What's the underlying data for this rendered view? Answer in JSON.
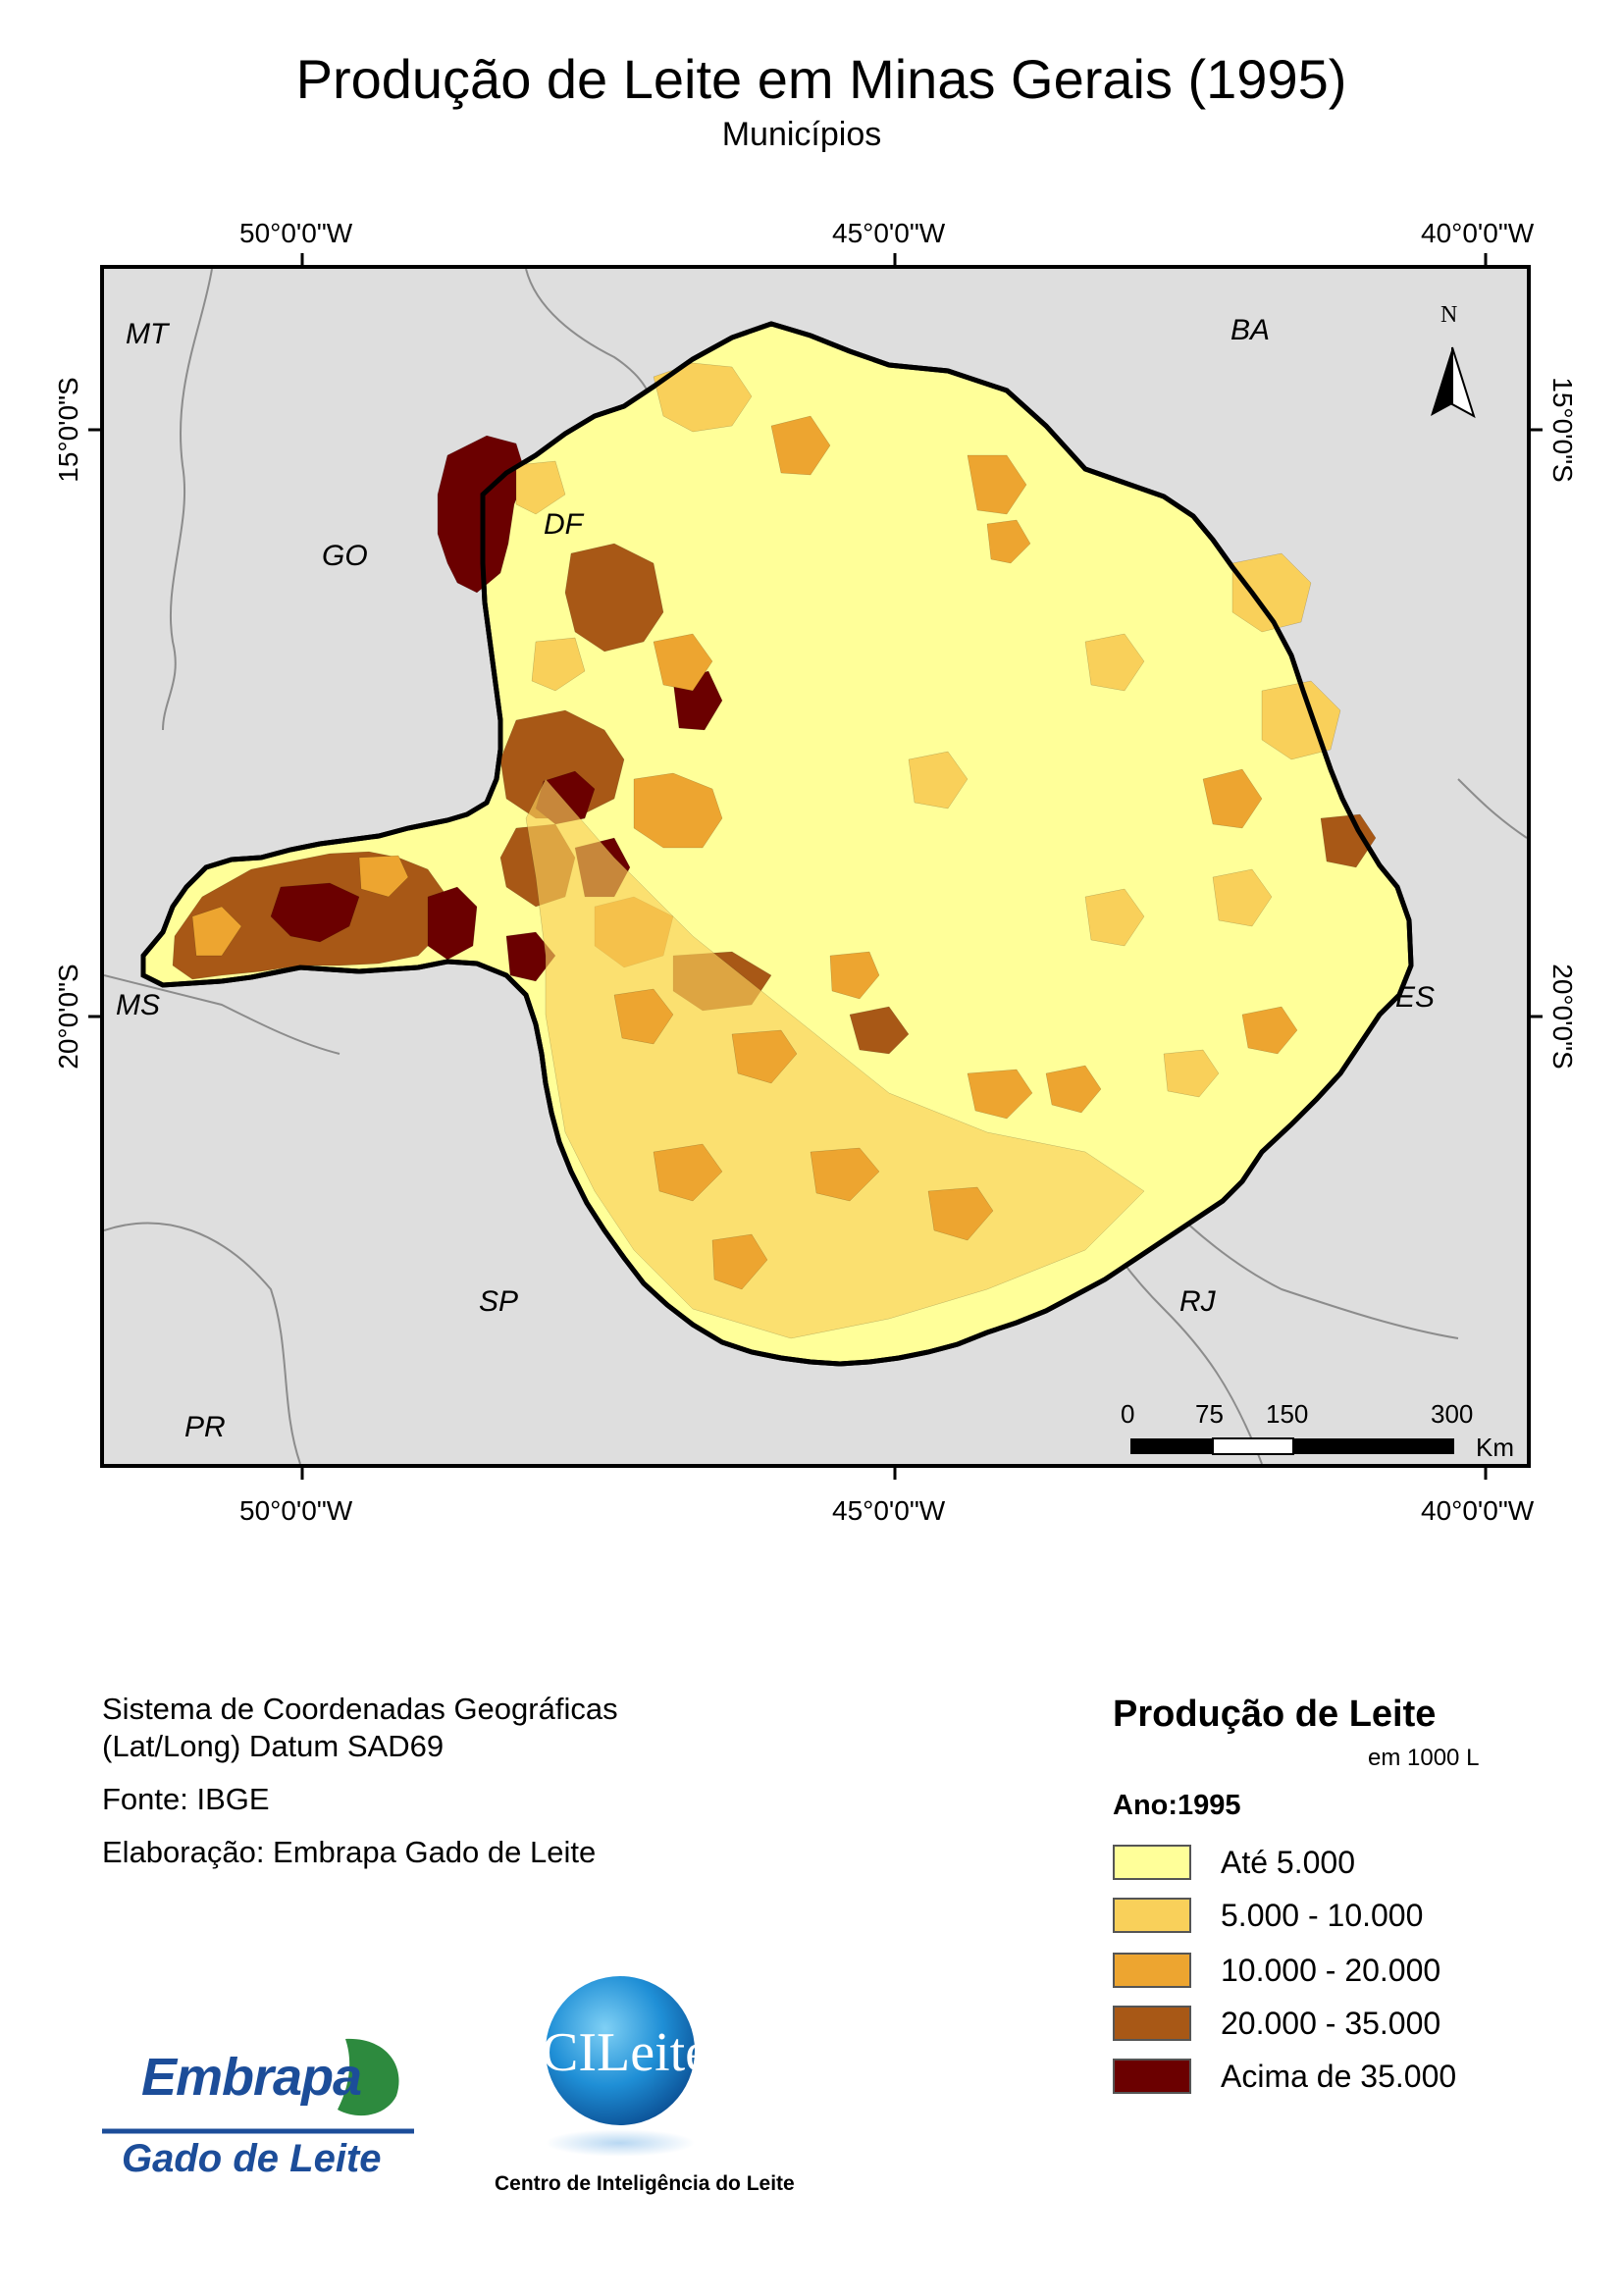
{
  "title": "Produção de Leite em Minas Gerais (1995)",
  "subtitle": "Municípios",
  "graticule": {
    "lon_top": [
      "50°0'0\"W",
      "45°0'0\"W",
      "40°0'0\"W"
    ],
    "lon_bottom": [
      "50°0'0\"W",
      "45°0'0\"W",
      "40°0'0\"W"
    ],
    "lat_left": [
      "15°0'0\"S",
      "20°0'0\"S"
    ],
    "lat_right": [
      "15°0'0\"S",
      "20°0'0\"S"
    ]
  },
  "neighbors": {
    "mt": "MT",
    "ba": "BA",
    "go": "GO",
    "df": "DF",
    "ms": "MS",
    "es": "ES",
    "sp": "SP",
    "rj": "RJ",
    "pr": "PR"
  },
  "north_arrow": {
    "label": "N"
  },
  "scale_bar": {
    "labels": [
      "0",
      "75",
      "150",
      "300"
    ],
    "unit": "Km"
  },
  "metadata": {
    "coord_system_line1": "Sistema de Coordenadas Geográficas",
    "coord_system_line2": "(Lat/Long) Datum SAD69",
    "source": "Fonte: IBGE",
    "authorship": "Elaboração: Embrapa Gado de Leite"
  },
  "legend": {
    "title": "Produção de Leite",
    "unit": "em 1000 L",
    "year": "Ano:1995",
    "classes": [
      {
        "label": "Até 5.000",
        "color": "#ffff99"
      },
      {
        "label": "5.000 - 10.000",
        "color": "#f9d05a"
      },
      {
        "label": "10.000 - 20.000",
        "color": "#eda530"
      },
      {
        "label": "20.000 - 35.000",
        "color": "#a85816"
      },
      {
        "label": "Acima de 35.000",
        "color": "#6b0000"
      }
    ]
  },
  "logos": {
    "embrapa_name": "Embrapa",
    "embrapa_unit": "Gado de Leite",
    "cileite_name": "CILeite",
    "cileite_caption": "Centro de Inteligência do Leite"
  }
}
